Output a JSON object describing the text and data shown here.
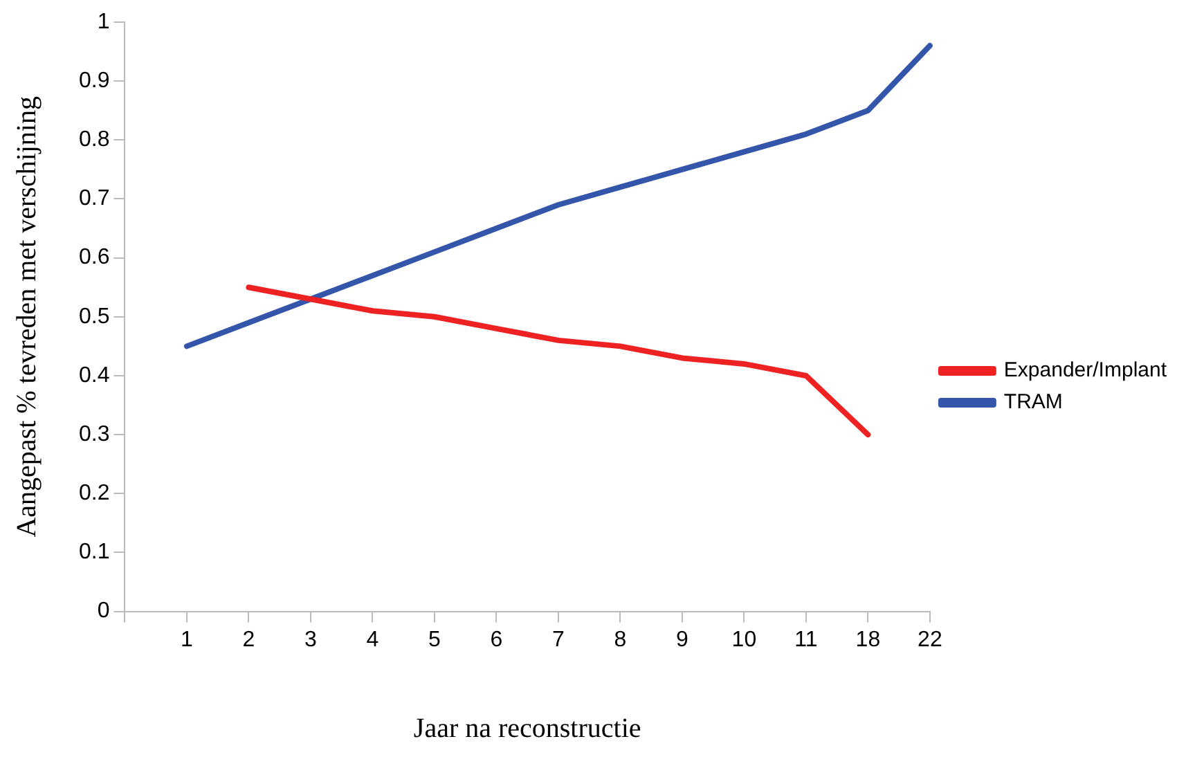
{
  "chart_data": {
    "type": "line",
    "xlabel": "Jaar na reconstructie",
    "ylabel": "Aangepast % tevreden met verschijning",
    "categories": [
      null,
      "1",
      "2",
      "3",
      "4",
      "5",
      "6",
      "7",
      "8",
      "9",
      "10",
      "11",
      "18",
      "22"
    ],
    "series": [
      {
        "name": "Expander/Implant",
        "color": "#ee2222",
        "values": [
          null,
          null,
          0.55,
          0.53,
          0.51,
          0.5,
          0.48,
          0.46,
          0.45,
          0.43,
          0.42,
          0.4,
          0.3,
          null
        ]
      },
      {
        "name": "TRAM",
        "color": "#3355aa",
        "values": [
          null,
          0.45,
          0.49,
          0.53,
          0.57,
          0.61,
          0.65,
          0.69,
          0.72,
          0.75,
          0.78,
          0.81,
          0.85,
          0.96
        ]
      }
    ],
    "ylim": [
      0,
      1
    ],
    "yticks": [
      0,
      0.1,
      0.2,
      0.3,
      0.4,
      0.5,
      0.6,
      0.7,
      0.8,
      0.9,
      1
    ],
    "grid": false,
    "legend": "right",
    "marker": "none",
    "line_style": "solid"
  }
}
